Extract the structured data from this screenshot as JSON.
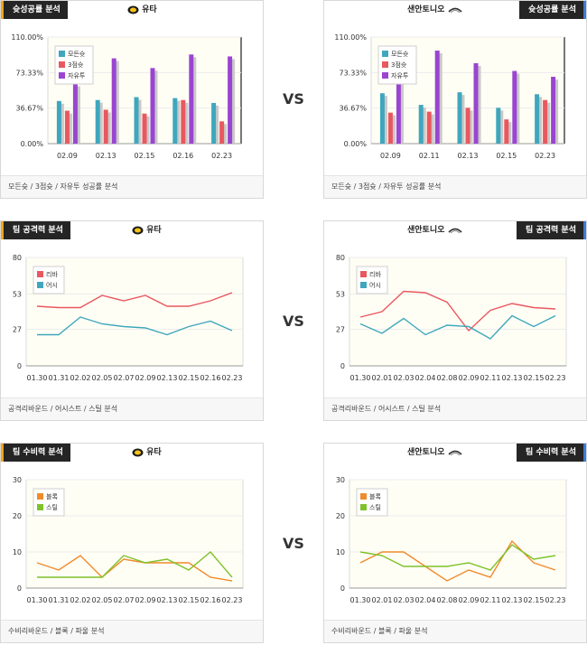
{
  "vs_label": "VS",
  "panels": [
    {
      "id": "shoot-left",
      "tab": "슛성공률 분석",
      "team": "유타",
      "team_icon": "utah-logo-icon",
      "footer": "모든슛 / 3점슛 / 자유투 성공률 분석"
    },
    {
      "id": "shoot-right",
      "tab": "슛성공률 분석",
      "team": "샌안토니오",
      "team_icon": "san-antonio-logo-icon",
      "footer": "모든슛 / 3점슛 / 자유투 성공률 분석"
    },
    {
      "id": "attack-left",
      "tab": "팀 공격력 분석",
      "team": "유타",
      "team_icon": "utah-logo-icon",
      "footer": "공격리바운드 / 어시스트 / 스틸 분석"
    },
    {
      "id": "attack-right",
      "tab": "팀 공격력 분석",
      "team": "샌안토니오",
      "team_icon": "san-antonio-logo-icon",
      "footer": "공격리바운드 / 어시스트 / 스틸 분석"
    },
    {
      "id": "defense-left",
      "tab": "팀 수비력 분석",
      "team": "유타",
      "team_icon": "utah-logo-icon",
      "footer": "수비리바운드 / 블록 / 파울 분석"
    },
    {
      "id": "defense-right",
      "tab": "팀 수비력 분석",
      "team": "샌안토니오",
      "team_icon": "san-antonio-logo-icon",
      "footer": "수비리바운드 / 블록 / 파울 분석"
    }
  ],
  "colors": {
    "blue": "#3fa7bd",
    "red": "#e9585f",
    "purple": "#9a45d1",
    "orange": "#f08a2c",
    "green": "#7ec22a"
  },
  "chart_data": [
    {
      "type": "bar",
      "categories": [
        "02.09",
        "02.13",
        "02.15",
        "02.16",
        "02.23"
      ],
      "ylim": [
        0,
        110
      ],
      "yticks": [
        "110.00%",
        "73.33%",
        "36.67%",
        "0.00%"
      ],
      "legend": "top-left",
      "series": [
        {
          "name": "모든슛",
          "values": [
            44,
            45,
            48,
            47,
            42
          ]
        },
        {
          "name": "3점슛",
          "values": [
            34,
            35,
            31,
            45,
            23
          ]
        },
        {
          "name": "자유투",
          "values": [
            62,
            88,
            78,
            92,
            90
          ]
        }
      ]
    },
    {
      "type": "bar",
      "categories": [
        "02.09",
        "02.11",
        "02.13",
        "02.15",
        "02.23"
      ],
      "ylim": [
        0,
        110
      ],
      "yticks": [
        "110.00%",
        "73.33%",
        "36.67%",
        "0.00%"
      ],
      "legend": "top-left",
      "series": [
        {
          "name": "모든슛",
          "values": [
            52,
            40,
            53,
            37,
            51
          ]
        },
        {
          "name": "3점슛",
          "values": [
            32,
            33,
            37,
            25,
            45
          ]
        },
        {
          "name": "자유투",
          "values": [
            88,
            96,
            83,
            75,
            69
          ]
        }
      ]
    },
    {
      "type": "line",
      "categories": [
        "01.30",
        "01.31",
        "02.02",
        "02.05",
        "02.07",
        "02.09",
        "02.13",
        "02.15",
        "02.16",
        "02.23"
      ],
      "ylim": [
        0,
        80
      ],
      "yticks": [
        "80",
        "53",
        "27",
        "0"
      ],
      "legend": "top-left",
      "series": [
        {
          "name": "리바",
          "values": [
            44,
            43,
            43,
            52,
            48,
            52,
            44,
            44,
            48,
            54
          ]
        },
        {
          "name": "어시",
          "values": [
            23,
            23,
            36,
            31,
            29,
            28,
            23,
            29,
            33,
            26
          ]
        }
      ]
    },
    {
      "type": "line",
      "categories": [
        "01.30",
        "02.01",
        "02.03",
        "02.04",
        "02.08",
        "02.09",
        "02.11",
        "02.13",
        "02.15",
        "02.23"
      ],
      "ylim": [
        0,
        80
      ],
      "yticks": [
        "80",
        "53",
        "27",
        "0"
      ],
      "legend": "top-left",
      "series": [
        {
          "name": "리바",
          "values": [
            36,
            40,
            55,
            54,
            47,
            26,
            41,
            46,
            43,
            42
          ]
        },
        {
          "name": "어시",
          "values": [
            31,
            24,
            35,
            23,
            30,
            29,
            20,
            37,
            29,
            37
          ]
        }
      ]
    },
    {
      "type": "line",
      "categories": [
        "01.30",
        "01.31",
        "02.02",
        "02.05",
        "02.07",
        "02.09",
        "02.13",
        "02.15",
        "02.16",
        "02.23"
      ],
      "ylim": [
        0,
        30
      ],
      "yticks": [
        "30",
        "20",
        "10",
        "0"
      ],
      "legend": "top-left",
      "series": [
        {
          "name": "블록",
          "values": [
            7,
            5,
            9,
            3,
            8,
            7,
            7,
            7,
            3,
            2
          ]
        },
        {
          "name": "스틸",
          "values": [
            3,
            3,
            3,
            3,
            9,
            7,
            8,
            5,
            10,
            3
          ]
        }
      ]
    },
    {
      "type": "line",
      "categories": [
        "01.30",
        "02.01",
        "02.03",
        "02.04",
        "02.08",
        "02.09",
        "02.11",
        "02.13",
        "02.15",
        "02.23"
      ],
      "ylim": [
        0,
        30
      ],
      "yticks": [
        "30",
        "20",
        "10",
        "0"
      ],
      "legend": "top-left",
      "series": [
        {
          "name": "블록",
          "values": [
            7,
            10,
            10,
            6,
            2,
            5,
            3,
            13,
            7,
            5
          ]
        },
        {
          "name": "스틸",
          "values": [
            10,
            9,
            6,
            6,
            6,
            7,
            5,
            12,
            8,
            9
          ]
        }
      ]
    }
  ]
}
